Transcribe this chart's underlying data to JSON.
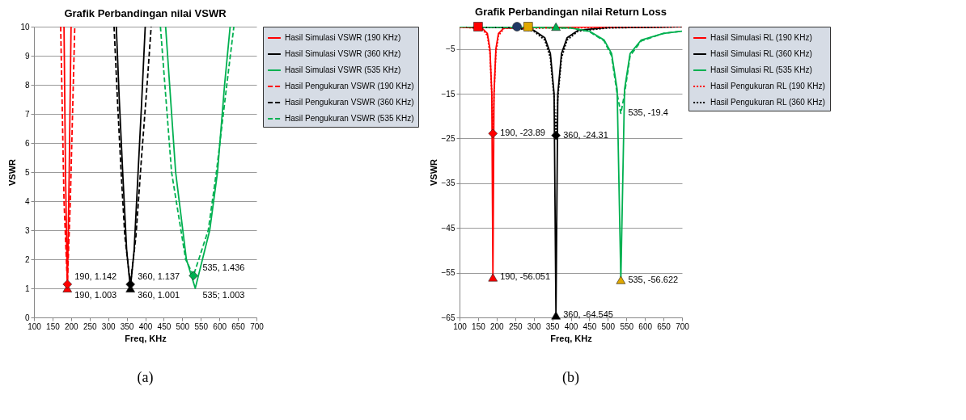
{
  "chart_data": [
    {
      "type": "line",
      "title": "Grafik Perbandingan nilai  VSWR",
      "xlabel": "Freq, KHz",
      "ylabel": "VSWR",
      "xlim": [
        100,
        700
      ],
      "xticks": [
        100,
        150,
        200,
        250,
        300,
        350,
        400,
        450,
        500,
        550,
        600,
        650,
        700
      ],
      "ylim": [
        0,
        10
      ],
      "yticks": [
        0,
        1,
        2,
        3,
        4,
        5,
        6,
        7,
        8,
        9,
        10
      ],
      "grid": "y",
      "legend": "right",
      "series": [
        {
          "name": "Hasil Simulasi VSWR (190 KHz)",
          "color": "#ff0000",
          "line_style": "solid",
          "x": [
            181,
            185,
            190,
            195,
            200
          ],
          "values": [
            10,
            5,
            1.003,
            5,
            10
          ]
        },
        {
          "name": "Hasil Simulasi VSWR (360 KHz)",
          "color": "#000000",
          "line_style": "solid",
          "x": [
            322,
            330,
            340,
            350,
            360,
            370,
            380,
            390,
            400
          ],
          "values": [
            10,
            7.5,
            4.8,
            2.3,
            1.001,
            2.3,
            4.8,
            7.3,
            10
          ]
        },
        {
          "name": "Hasil Simulasi VSWR (535 KHz)",
          "color": "#00b050",
          "line_style": "solid",
          "x": [
            455,
            482,
            511,
            535,
            574,
            595,
            614,
            629
          ],
          "values": [
            10,
            5,
            2,
            1.003,
            3,
            5,
            8,
            10
          ]
        },
        {
          "name": "Hasil Pengukuran VSWR (190 KHz)",
          "color": "#ff0000",
          "line_style": "dashed",
          "x": [
            172,
            181,
            190,
            198,
            210
          ],
          "values": [
            10,
            4,
            1.142,
            4,
            10
          ]
        },
        {
          "name": "Hasil Pengukuran VSWR (360 KHz)",
          "color": "#000000",
          "line_style": "dashed",
          "x": [
            316,
            325,
            335,
            345,
            360,
            375,
            390,
            405,
            416
          ],
          "values": [
            10,
            7.5,
            5,
            2.8,
            1.137,
            2.8,
            5.5,
            8,
            10
          ]
        },
        {
          "name": "Hasil Pengukuran VSWR (535 KHz)",
          "color": "#00b050",
          "line_style": "dashed",
          "x": [
            441,
            471,
            509,
            530,
            570,
            592,
            620,
            639
          ],
          "values": [
            10,
            5,
            2,
            1.436,
            3,
            5,
            8,
            10
          ]
        },
        {
          "type": "scatter",
          "marker": "triangle",
          "colors": [
            "#ff0000",
            "#000000"
          ],
          "x": [
            190,
            360
          ],
          "values": [
            1.003,
            1.001
          ]
        },
        {
          "type": "scatter",
          "marker": "diamond",
          "colors": [
            "#ff0000",
            "#000000",
            "#00b050"
          ],
          "x": [
            190,
            360,
            530
          ],
          "values": [
            1.142,
            1.137,
            1.436
          ]
        }
      ],
      "annotations": [
        {
          "text": "190, 1.142",
          "x": 190,
          "y": 1.142
        },
        {
          "text": "190, 1.003",
          "x": 190,
          "y": 1.003
        },
        {
          "text": "360, 1.137",
          "x": 360,
          "y": 1.137
        },
        {
          "text": "360, 1.001",
          "x": 360,
          "y": 1.001
        },
        {
          "text": "535, 1.436",
          "x": 535,
          "y": 1.436
        },
        {
          "text": "535; 1.003",
          "x": 535,
          "y": 1.003
        },
        "(a)"
      ]
    },
    {
      "type": "line",
      "title": "Grafik Perbandingan nilai  Return Loss",
      "xlabel": "Freq, KHz",
      "ylabel": "VSWR",
      "xlim": [
        100,
        700
      ],
      "xticks": [
        100,
        150,
        200,
        250,
        300,
        350,
        400,
        450,
        500,
        550,
        600,
        650,
        700
      ],
      "ylim": [
        -65,
        0
      ],
      "yticks": [
        -5,
        -15,
        -25,
        -35,
        -45,
        -55,
        -65
      ],
      "grid": "y",
      "legend": "right",
      "series": [
        {
          "name": "Hasil Simulasi RL (190 KHz)",
          "color": "#ff0000",
          "line_style": "solid",
          "x": [
            100,
            160,
            175,
            182,
            187,
            190,
            193,
            198,
            205,
            220,
            300,
            700
          ],
          "values": [
            -0.1,
            -0.3,
            -1.5,
            -5,
            -15,
            -56.051,
            -15,
            -5,
            -1.5,
            -0.3,
            -0.1,
            0
          ]
        },
        {
          "name": "Hasil Simulasi RL (360 KHz)",
          "color": "#000000",
          "line_style": "solid",
          "x": [
            100,
            250,
            300,
            330,
            345,
            355,
            360,
            365,
            375,
            390,
            420,
            500,
            700
          ],
          "values": [
            0,
            -0.2,
            -0.8,
            -2.5,
            -6,
            -15,
            -64.545,
            -15,
            -6,
            -2.5,
            -0.8,
            -0.2,
            0
          ]
        },
        {
          "name": "Hasil Simulasi RL (535 KHz)",
          "color": "#00b050",
          "line_style": "solid",
          "x": [
            100,
            400,
            450,
            490,
            510,
            525,
            535,
            545,
            560,
            590,
            650,
            700
          ],
          "values": [
            0,
            -0.3,
            -1,
            -3,
            -6,
            -14,
            -56.622,
            -14,
            -6,
            -3,
            -1.5,
            -1
          ]
        },
        {
          "name": "Hasil Pengukuran RL (190 KHz)",
          "color": "#ff0000",
          "line_style": "dotted",
          "x": [
            100,
            160,
            175,
            182,
            187,
            190,
            193,
            198,
            205,
            220,
            700
          ],
          "values": [
            -0.1,
            -0.4,
            -2,
            -6,
            -15,
            -23.89,
            -15,
            -6,
            -2,
            -0.4,
            0
          ]
        },
        {
          "name": "Hasil Pengukuran RL (360 KHz)",
          "color": "#000000",
          "line_style": "dotted",
          "x": [
            100,
            250,
            300,
            330,
            345,
            355,
            360,
            365,
            375,
            390,
            420,
            500,
            700
          ],
          "values": [
            0,
            -0.3,
            -1,
            -3,
            -7,
            -16,
            -24.31,
            -16,
            -7,
            -3,
            -1,
            -0.3,
            0
          ]
        },
        {
          "color": "#00b050",
          "line_style": "dashed",
          "x": [
            100,
            400,
            450,
            490,
            510,
            525,
            535,
            545,
            560,
            590,
            650,
            700
          ],
          "values": [
            0,
            -0.3,
            -1.1,
            -3.2,
            -6.5,
            -15,
            -19.4,
            -15,
            -6.5,
            -3.2,
            -1.5,
            -1
          ]
        },
        {
          "type": "scatter",
          "marker": "square",
          "colors": [
            "#ff0000",
            "#e0a800"
          ],
          "x": [
            150,
            285
          ],
          "values": [
            0,
            0
          ]
        },
        {
          "type": "scatter",
          "marker": "circle",
          "colors": [
            "#1f3864"
          ],
          "x": [
            255
          ],
          "values": [
            0
          ]
        },
        {
          "type": "scatter",
          "marker": "triangle",
          "colors": [
            "#ff0000",
            "#000000",
            "#e0a800",
            "#00b050"
          ],
          "x": [
            190,
            360,
            535,
            360
          ],
          "values": [
            -56.051,
            -64.545,
            -56.622,
            0
          ]
        },
        {
          "type": "scatter",
          "marker": "diamond",
          "colors": [
            "#ff0000",
            "#000000"
          ],
          "x": [
            190,
            360
          ],
          "values": [
            -23.89,
            -24.31
          ]
        }
      ],
      "annotations": [
        {
          "text": "190, -23.89",
          "x": 190,
          "y": -23.89
        },
        {
          "text": "360, -24.31",
          "x": 360,
          "y": -24.31
        },
        {
          "text": "535, -19.4",
          "x": 535,
          "y": -19.4
        },
        {
          "text": "190, -56.051",
          "x": 190,
          "y": -56.051
        },
        {
          "text": "360, -64.545",
          "x": 360,
          "y": -64.545
        },
        {
          "text": "535, -56.622",
          "x": 535,
          "y": -56.622
        },
        "(b)"
      ]
    }
  ]
}
